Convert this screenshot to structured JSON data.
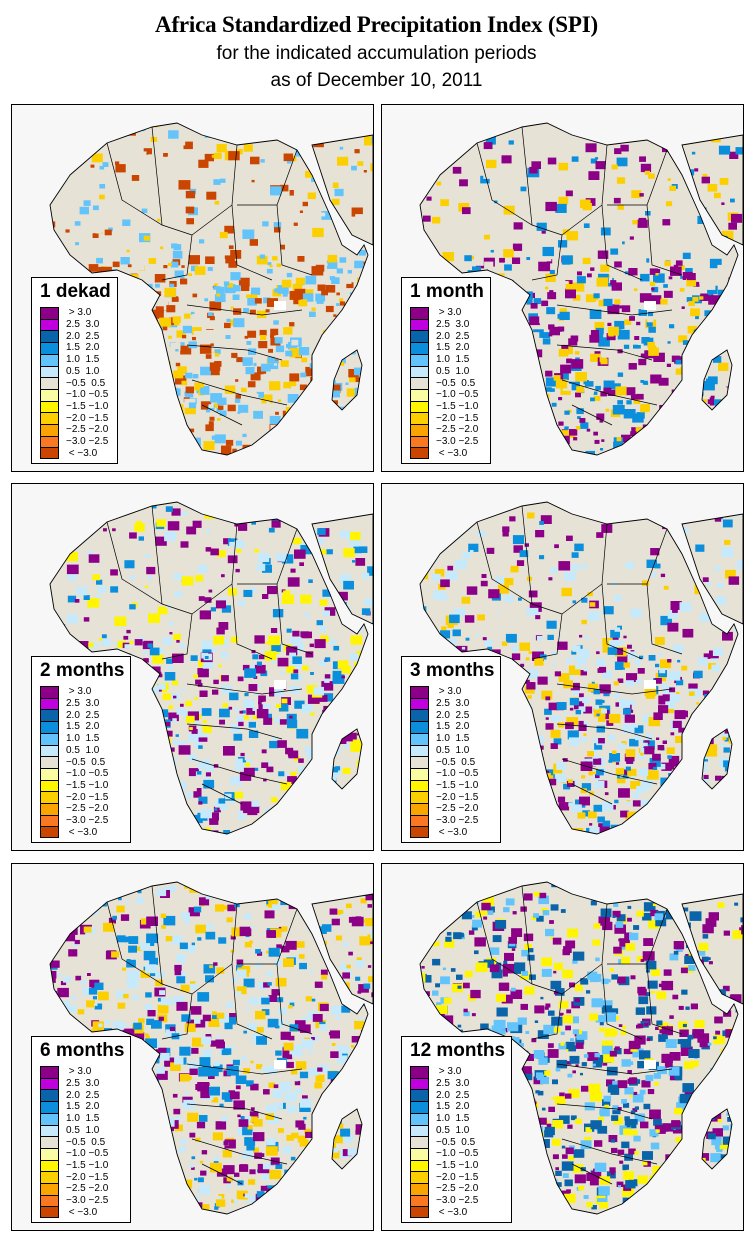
{
  "header": {
    "title": "Africa Standardized Precipitation Index (SPI)",
    "subtitle_line1": "for the indicated accumulation periods",
    "subtitle_line2": "as of December 10, 2011"
  },
  "legend_classes": [
    {
      "label": " > 3.0",
      "color": "#8b0087"
    },
    {
      "label": "2.5  3.0",
      "color": "#c000de"
    },
    {
      "label": "2.0  2.5",
      "color": "#0a64aa"
    },
    {
      "label": "1.5  2.0",
      "color": "#0b8fdc"
    },
    {
      "label": "1.0  1.5",
      "color": "#62c4fa"
    },
    {
      "label": "0.5  1.0",
      "color": "#c6eafb"
    },
    {
      "label": "−0.5  0.5",
      "color": "#e6e2d6"
    },
    {
      "label": "−1.0 −0.5",
      "color": "#fafca4"
    },
    {
      "label": "−1.5 −1.0",
      "color": "#fff500"
    },
    {
      "label": "−2.0 −1.5",
      "color": "#fcd000"
    },
    {
      "label": "−2.5 −2.0",
      "color": "#f9a400"
    },
    {
      "label": "−3.0 −2.5",
      "color": "#fb7822"
    },
    {
      "label": " < −3.0",
      "color": "#c94500"
    }
  ],
  "panels": [
    {
      "period": "1 dekad",
      "dominant": [
        "#e6e2d6",
        "#c94500",
        "#62c4fa",
        "#fcd000"
      ]
    },
    {
      "period": "1 month",
      "dominant": [
        "#e6e2d6",
        "#0b8fdc",
        "#8b0087",
        "#fcd000"
      ]
    },
    {
      "period": "2 months",
      "dominant": [
        "#0b8fdc",
        "#8b0087",
        "#c6eafb",
        "#fff500"
      ]
    },
    {
      "period": "3 months",
      "dominant": [
        "#0b8fdc",
        "#8b0087",
        "#c6eafb",
        "#fcd000"
      ]
    },
    {
      "period": "6 months",
      "dominant": [
        "#0b8fdc",
        "#8b0087",
        "#c6eafb",
        "#fcd000"
      ]
    },
    {
      "period": "12 months",
      "dominant": [
        "#62c4fa",
        "#8b0087",
        "#0a64aa",
        "#fff500"
      ]
    }
  ],
  "chart_data": {
    "type": "heatmap",
    "title": "Africa Standardized Precipitation Index (SPI)",
    "subtitle": "for the indicated accumulation periods as of December 10, 2011",
    "panels": [
      "1 dekad",
      "1 month",
      "2 months",
      "3 months",
      "6 months",
      "12 months"
    ],
    "legend_placement": "bottom-left (each panel)",
    "color_scale_bins": [
      {
        "min": 3.0,
        "max": null,
        "label": "> 3.0"
      },
      {
        "min": 2.5,
        "max": 3.0
      },
      {
        "min": 2.0,
        "max": 2.5
      },
      {
        "min": 1.5,
        "max": 2.0
      },
      {
        "min": 1.0,
        "max": 1.5
      },
      {
        "min": 0.5,
        "max": 1.0
      },
      {
        "min": -0.5,
        "max": 0.5
      },
      {
        "min": -1.0,
        "max": -0.5
      },
      {
        "min": -1.5,
        "max": -1.0
      },
      {
        "min": -2.0,
        "max": -1.5
      },
      {
        "min": -2.5,
        "max": -2.0
      },
      {
        "min": -3.0,
        "max": -2.5
      },
      {
        "min": null,
        "max": -3.0,
        "label": "< -3.0"
      }
    ]
  }
}
